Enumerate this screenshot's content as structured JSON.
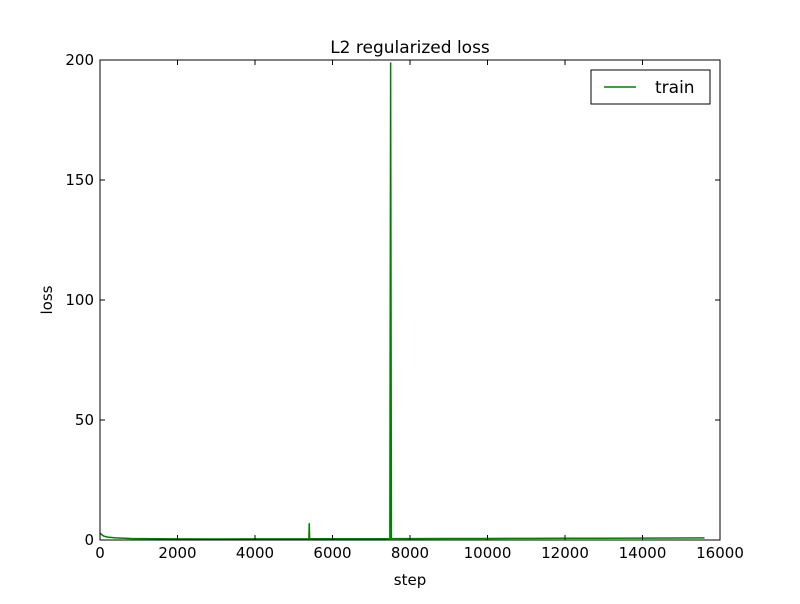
{
  "chart_data": {
    "type": "line",
    "title": "L2 regularized loss",
    "xlabel": "step",
    "ylabel": "loss",
    "xlim": [
      0,
      16000
    ],
    "ylim": [
      0,
      200
    ],
    "x_ticks": [
      0,
      2000,
      4000,
      6000,
      8000,
      10000,
      12000,
      14000,
      16000
    ],
    "y_ticks": [
      0,
      50,
      100,
      150,
      200
    ],
    "x_tick_labels": [
      "0",
      "2000",
      "4000",
      "6000",
      "8000",
      "10000",
      "12000",
      "14000",
      "16000"
    ],
    "y_tick_labels": [
      "0",
      "50",
      "100",
      "150",
      "200"
    ],
    "grid": false,
    "legend_position": "top-right",
    "series": [
      {
        "name": "train",
        "color": "#008000",
        "points": [
          [
            0,
            2.8
          ],
          [
            50,
            2.2
          ],
          [
            100,
            1.6
          ],
          [
            200,
            1.2
          ],
          [
            400,
            0.9
          ],
          [
            800,
            0.6
          ],
          [
            1500,
            0.5
          ],
          [
            2000,
            0.45
          ],
          [
            3000,
            0.42
          ],
          [
            4000,
            0.45
          ],
          [
            5000,
            0.48
          ],
          [
            5390,
            0.5
          ],
          [
            5400,
            7.0
          ],
          [
            5410,
            0.5
          ],
          [
            6000,
            0.52
          ],
          [
            7000,
            0.52
          ],
          [
            7480,
            0.55
          ],
          [
            7500,
            199
          ],
          [
            7520,
            0.6
          ],
          [
            8000,
            0.58
          ],
          [
            9000,
            0.6
          ],
          [
            10000,
            0.65
          ],
          [
            11000,
            0.7
          ],
          [
            12000,
            0.72
          ],
          [
            13000,
            0.75
          ],
          [
            14000,
            0.8
          ],
          [
            15000,
            0.85
          ],
          [
            15600,
            0.9
          ]
        ]
      }
    ]
  }
}
